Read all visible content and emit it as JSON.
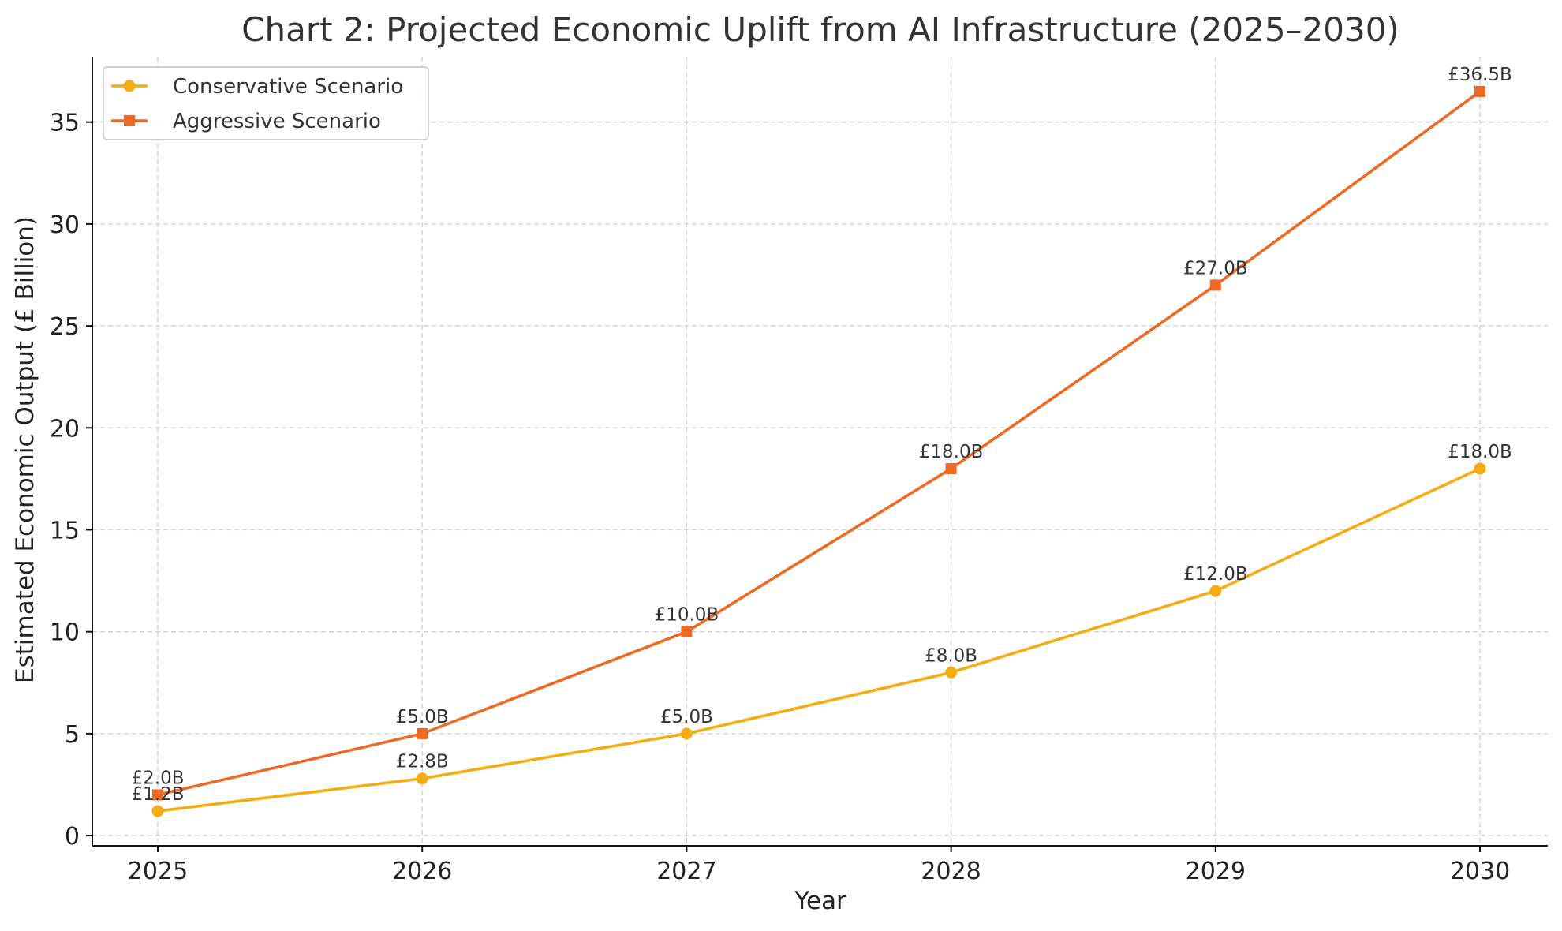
{
  "chart_data": {
    "type": "line",
    "title": "Chart 2: Projected Economic Uplift from AI Infrastructure (2025–2030)",
    "xlabel": "Year",
    "ylabel": "Estimated Economic Output (£ Billion)",
    "x": [
      "2025",
      "2026",
      "2027",
      "2028",
      "2029",
      "2030"
    ],
    "ylim": [
      -0.5,
      38.2
    ],
    "yticks": [
      "0",
      "5",
      "10",
      "15",
      "20",
      "25",
      "30",
      "35"
    ],
    "grid": true,
    "legend_position": "top-left",
    "series": [
      {
        "name": "Conservative Scenario",
        "values": [
          1.2,
          2.8,
          5.0,
          8.0,
          12.0,
          18.0
        ],
        "labels": [
          "£1.2B",
          "£2.8B",
          "£5.0B",
          "£8.0B",
          "£12.0B",
          "£18.0B"
        ],
        "color": "#F5AC12",
        "marker": "circle"
      },
      {
        "name": "Aggressive Scenario",
        "values": [
          2.0,
          5.0,
          10.0,
          18.0,
          27.0,
          36.5
        ],
        "labels": [
          "£2.0B",
          "£5.0B",
          "£10.0B",
          "£18.0B",
          "£27.0B",
          "£36.5B"
        ],
        "color": "#EE6A24",
        "marker": "square"
      }
    ]
  }
}
